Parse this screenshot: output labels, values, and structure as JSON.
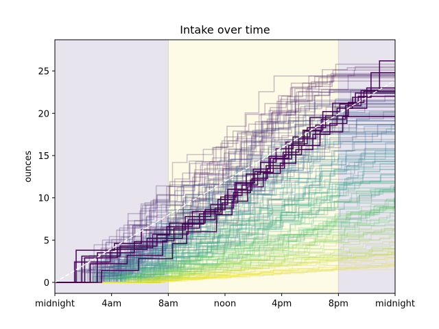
{
  "chart_data": {
    "type": "line",
    "title": "Intake over time",
    "xlabel": "",
    "ylabel": "ounces",
    "x_ticks": [
      "midnight",
      "4am",
      "8am",
      "noon",
      "4pm",
      "8pm",
      "midnight"
    ],
    "x_tick_hours": [
      0,
      4,
      8,
      12,
      16,
      20,
      24
    ],
    "y_ticks": [
      0,
      5,
      10,
      15,
      20,
      25
    ],
    "xlim_hours": [
      0,
      24
    ],
    "ylim": [
      -1.3,
      28.7
    ],
    "grid": false,
    "legend": "none",
    "bands": [
      {
        "from_hour": 0,
        "to_hour": 8,
        "color": "#e8e4ee"
      },
      {
        "from_hour": 8,
        "to_hour": 20,
        "color": "#fdfae6"
      },
      {
        "from_hour": 20,
        "to_hour": 24,
        "color": "#e8e4ee"
      }
    ],
    "band_edge_color": "#d8d3c8",
    "colormap": [
      "#440154",
      "#3b528b",
      "#21918c",
      "#5ec962",
      "#fde725"
    ],
    "background_line_count": 150,
    "highlight_series": [
      {
        "points": [
          [
            0,
            0
          ],
          [
            1.2,
            0
          ],
          [
            1.5,
            3.8
          ],
          [
            3.5,
            3.8
          ],
          [
            4.2,
            4.6
          ],
          [
            5.8,
            4.6
          ],
          [
            6.1,
            6.2
          ],
          [
            8.5,
            6.2
          ],
          [
            9.2,
            7.8
          ],
          [
            11.0,
            9.2
          ],
          [
            12.2,
            11.0
          ],
          [
            13.5,
            12.8
          ],
          [
            14.5,
            14.2
          ],
          [
            15.6,
            15.8
          ],
          [
            16.8,
            17.2
          ],
          [
            18.0,
            19.5
          ],
          [
            19.6,
            21.2
          ],
          [
            21.2,
            22.4
          ],
          [
            24,
            22.4
          ]
        ]
      },
      {
        "points": [
          [
            0,
            0
          ],
          [
            1.8,
            0
          ],
          [
            2.1,
            2.9
          ],
          [
            4.0,
            2.9
          ],
          [
            4.4,
            4.1
          ],
          [
            6.2,
            4.1
          ],
          [
            6.9,
            5.7
          ],
          [
            8.8,
            5.7
          ],
          [
            9.4,
            7.4
          ],
          [
            11.3,
            8.8
          ],
          [
            12.6,
            10.6
          ],
          [
            13.8,
            12.1
          ],
          [
            14.9,
            13.8
          ],
          [
            16.1,
            15.4
          ],
          [
            17.2,
            17.0
          ],
          [
            18.4,
            18.6
          ],
          [
            19.9,
            20.6
          ],
          [
            21.0,
            21.9
          ],
          [
            22.3,
            24.8
          ],
          [
            24,
            24.8
          ]
        ]
      },
      {
        "points": [
          [
            0,
            0
          ],
          [
            2.6,
            0
          ],
          [
            3.0,
            3.5
          ],
          [
            5.0,
            3.5
          ],
          [
            5.6,
            4.8
          ],
          [
            7.4,
            4.8
          ],
          [
            7.9,
            6.6
          ],
          [
            9.1,
            6.6
          ],
          [
            9.7,
            8.4
          ],
          [
            11.5,
            9.8
          ],
          [
            12.7,
            11.8
          ],
          [
            14.1,
            13.1
          ],
          [
            15.2,
            14.7
          ],
          [
            16.5,
            16.2
          ],
          [
            17.6,
            17.9
          ],
          [
            18.8,
            19.3
          ],
          [
            20.5,
            20.9
          ],
          [
            21.6,
            22.7
          ],
          [
            22.9,
            26.2
          ],
          [
            24,
            26.2
          ]
        ]
      },
      {
        "points": [
          [
            0,
            0
          ],
          [
            2.2,
            0
          ],
          [
            2.5,
            2.2
          ],
          [
            4.8,
            2.2
          ],
          [
            5.1,
            3.2
          ],
          [
            7.1,
            3.2
          ],
          [
            7.6,
            4.9
          ],
          [
            8.4,
            6.4
          ],
          [
            9.6,
            6.4
          ],
          [
            10.2,
            8.1
          ],
          [
            11.8,
            9.4
          ],
          [
            12.9,
            10.9
          ],
          [
            13.9,
            12.3
          ],
          [
            15.0,
            13.5
          ],
          [
            16.2,
            15.1
          ],
          [
            17.4,
            16.2
          ],
          [
            18.7,
            17.8
          ],
          [
            20.3,
            19.6
          ],
          [
            24,
            19.6
          ]
        ]
      },
      {
        "points": [
          [
            0,
            0
          ],
          [
            1.5,
            0
          ],
          [
            1.9,
            3.1
          ],
          [
            3.8,
            3.1
          ],
          [
            4.6,
            4.3
          ],
          [
            6.6,
            4.3
          ],
          [
            7.2,
            5.6
          ],
          [
            8.1,
            7.0
          ],
          [
            9.9,
            7.0
          ],
          [
            10.6,
            8.6
          ],
          [
            12.0,
            10.3
          ],
          [
            13.2,
            11.5
          ],
          [
            14.3,
            13.0
          ],
          [
            15.4,
            14.6
          ],
          [
            16.7,
            16.4
          ],
          [
            17.8,
            18.3
          ],
          [
            19.1,
            19.7
          ],
          [
            20.7,
            21.3
          ],
          [
            21.8,
            22.6
          ],
          [
            24,
            22.6
          ]
        ]
      },
      {
        "points": [
          [
            0,
            0
          ],
          [
            2.9,
            0
          ],
          [
            3.3,
            1.4
          ],
          [
            5.4,
            1.4
          ],
          [
            5.9,
            2.8
          ],
          [
            7.8,
            2.8
          ],
          [
            8.3,
            4.6
          ],
          [
            9.3,
            6.0
          ],
          [
            10.8,
            6.0
          ],
          [
            11.4,
            8.0
          ],
          [
            12.5,
            9.6
          ],
          [
            13.6,
            11.3
          ],
          [
            14.7,
            12.9
          ],
          [
            15.9,
            14.1
          ],
          [
            17.0,
            15.7
          ],
          [
            18.2,
            17.5
          ],
          [
            19.4,
            18.8
          ],
          [
            20.6,
            20.6
          ],
          [
            22.0,
            23.0
          ],
          [
            24,
            23.0
          ]
        ]
      },
      {
        "points": [
          [
            0,
            0
          ],
          [
            1.0,
            0
          ],
          [
            1.4,
            2.4
          ],
          [
            3.2,
            2.4
          ],
          [
            3.9,
            3.9
          ],
          [
            5.9,
            3.9
          ],
          [
            6.5,
            5.2
          ],
          [
            8.6,
            5.2
          ],
          [
            9.0,
            6.9
          ],
          [
            10.5,
            8.3
          ],
          [
            11.7,
            10.1
          ],
          [
            12.8,
            11.7
          ],
          [
            14.0,
            13.4
          ],
          [
            15.1,
            14.9
          ],
          [
            16.3,
            16.6
          ],
          [
            17.5,
            18.0
          ],
          [
            18.9,
            20.2
          ],
          [
            20.1,
            21.1
          ],
          [
            21.4,
            22.0
          ],
          [
            24,
            22.0
          ]
        ]
      }
    ],
    "mean_line": {
      "color": "#ffffff",
      "dash": true,
      "points": [
        [
          0,
          0
        ],
        [
          24,
          23.9
        ]
      ]
    }
  }
}
